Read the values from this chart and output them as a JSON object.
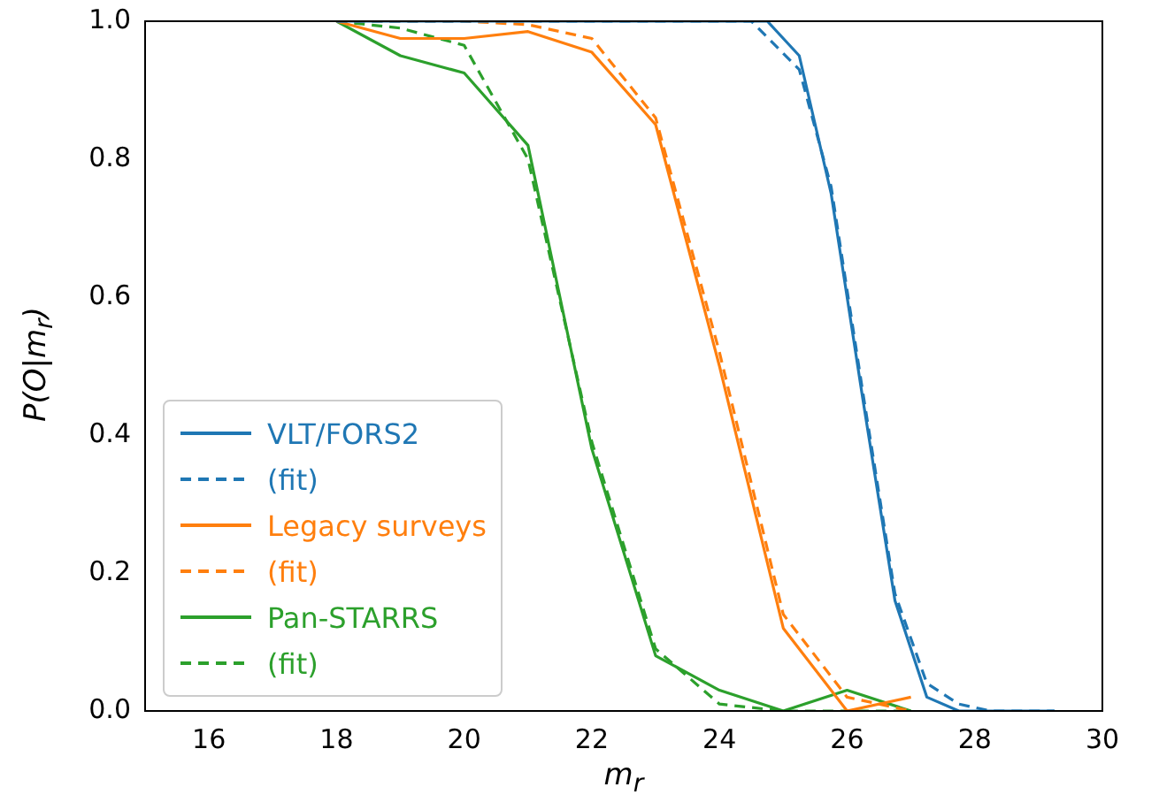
{
  "chart_data": {
    "type": "line",
    "xlabel": "m$_{r}$",
    "ylabel": "P(O|m$_{r}$)",
    "xlim": [
      15,
      30
    ],
    "xticks": [
      16,
      18,
      20,
      22,
      24,
      26,
      28,
      30
    ],
    "ylim": [
      0,
      1
    ],
    "yticks": [
      {
        "value": 0,
        "label": "0.0"
      },
      {
        "value": 0.2,
        "label": "0.2"
      },
      {
        "value": 0.4,
        "label": "0.4"
      },
      {
        "value": 0.6,
        "label": "0.6"
      },
      {
        "value": 0.8,
        "label": "0.8"
      },
      {
        "value": 1,
        "label": "1.0"
      }
    ],
    "grid": false,
    "legend": "bottom left",
    "marker": "none",
    "series": [
      {
        "name": "VLT/FORS2",
        "color": "#1f77b4",
        "line_style": "solid",
        "x": [
          18,
          24.75,
          25.25,
          25.75,
          26.25,
          26.75,
          27.25,
          27.75,
          28.25,
          28.75,
          29.25
        ],
        "values": [
          1,
          1,
          0.95,
          0.75,
          0.45,
          0.16,
          0.02,
          0,
          0,
          0,
          0
        ]
      },
      {
        "name": "(fit)",
        "color": "#1f77b4",
        "line_style": "dashed",
        "x": [
          18,
          24.5,
          25.25,
          25.75,
          26.25,
          26.75,
          27.25,
          27.75,
          28.25,
          28.75,
          29.25
        ],
        "values": [
          1,
          1,
          0.93,
          0.76,
          0.46,
          0.17,
          0.04,
          0.01,
          0,
          0,
          0
        ]
      },
      {
        "name": "Legacy surveys",
        "color": "#ff7f0e",
        "line_style": "solid",
        "x": [
          18,
          19,
          20,
          21,
          22,
          23,
          24,
          25,
          26,
          27
        ],
        "values": [
          1,
          0.975,
          0.975,
          0.985,
          0.955,
          0.85,
          0.5,
          0.12,
          0,
          0.02
        ]
      },
      {
        "name": "(fit)",
        "color": "#ff7f0e",
        "line_style": "dashed",
        "x": [
          18,
          19,
          20,
          21,
          22,
          23,
          24,
          25,
          26,
          27
        ],
        "values": [
          1,
          1,
          1,
          0.995,
          0.975,
          0.86,
          0.52,
          0.14,
          0.02,
          0
        ]
      },
      {
        "name": "Pan-STARRS",
        "color": "#2ca02c",
        "line_style": "solid",
        "x": [
          18,
          19,
          20,
          21,
          22,
          23,
          24,
          25,
          26,
          27
        ],
        "values": [
          1,
          0.95,
          0.925,
          0.82,
          0.38,
          0.08,
          0.03,
          0,
          0.03,
          0
        ]
      },
      {
        "name": "(fit)",
        "color": "#2ca02c",
        "line_style": "dashed",
        "x": [
          18,
          19,
          20,
          21,
          22,
          23,
          24,
          25,
          26,
          27
        ],
        "values": [
          1,
          0.99,
          0.965,
          0.8,
          0.39,
          0.09,
          0.01,
          0,
          0,
          0
        ]
      }
    ]
  }
}
